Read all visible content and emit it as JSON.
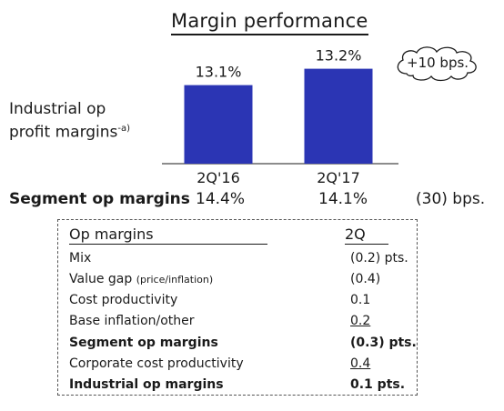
{
  "title": "Margin performance",
  "y_label_line1": "Industrial op",
  "y_label_line2": "profit margins",
  "y_label_note": "-a)",
  "callout": "+10 bps.",
  "chart_data": {
    "type": "bar",
    "categories": [
      "2Q'16",
      "2Q'17"
    ],
    "values": [
      13.1,
      13.2
    ],
    "value_labels": [
      "13.1%",
      "13.2%"
    ],
    "title": "Margin performance",
    "ylabel": "Industrial op profit margins-a)",
    "xlabel": "",
    "grid": false,
    "colors": [
      "#2b35b4"
    ]
  },
  "segment": {
    "label": "Segment op margins",
    "v1": "14.4%",
    "v2": "14.1%",
    "delta": "(30) bps."
  },
  "table": {
    "header_label": "Op margins",
    "header_col": "2Q",
    "rows": [
      {
        "label": "Mix",
        "value": "(0.2) pts."
      },
      {
        "label": "Value gap",
        "sublabel": "(price/inflation)",
        "value": "(0.4)"
      },
      {
        "label": "Cost productivity",
        "value": "0.1"
      },
      {
        "label": "Base inflation/other",
        "value": "0.2"
      },
      {
        "label": "Segment op margins",
        "value": "(0.3) pts."
      },
      {
        "label": "Corporate cost productivity",
        "value": "0.4"
      },
      {
        "label": "Industrial op margins",
        "value": "0.1 pts."
      }
    ]
  }
}
